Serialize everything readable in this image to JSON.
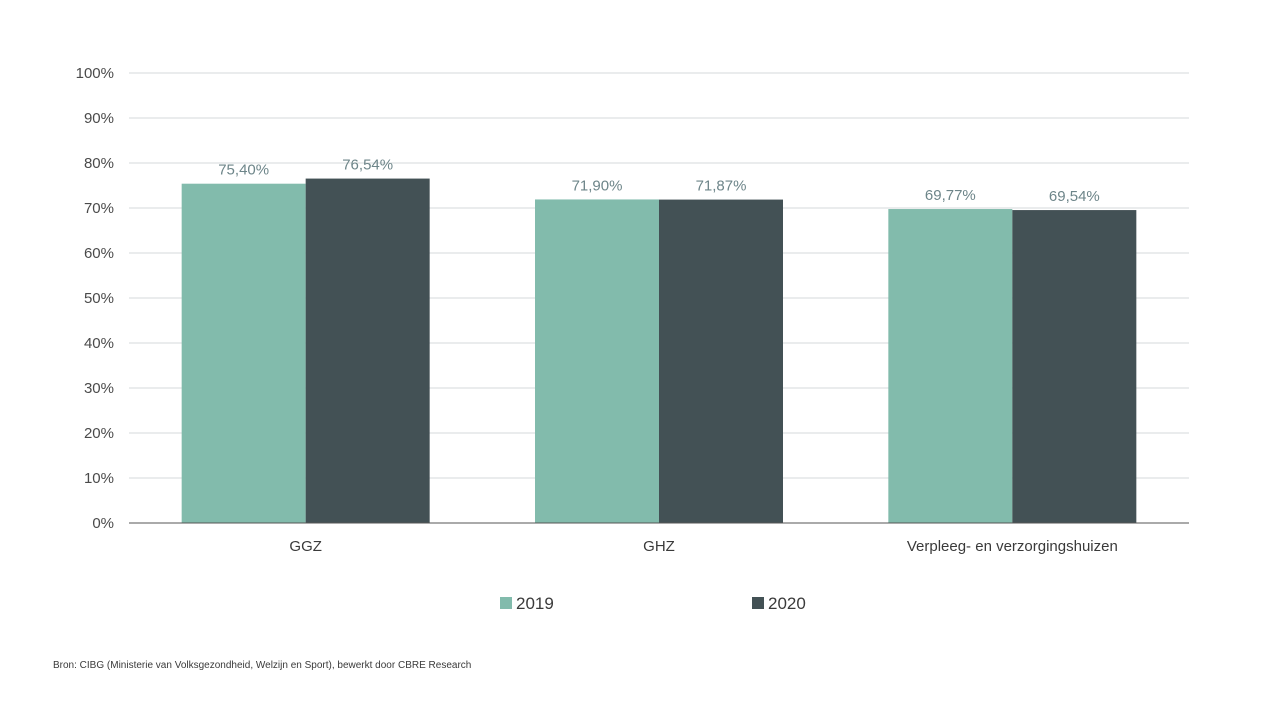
{
  "chart_data": {
    "type": "bar",
    "categories": [
      "GGZ",
      "GHZ",
      "Verpleeg- en verzorgingshuizen"
    ],
    "series": [
      {
        "name": "2019",
        "color": "#82bbac",
        "values": [
          75.4,
          71.9,
          69.77
        ],
        "labels": [
          "75,40%",
          "71,90%",
          "69,77%"
        ]
      },
      {
        "name": "2020",
        "color": "#435155",
        "values": [
          76.54,
          71.87,
          69.54
        ],
        "labels": [
          "76,54%",
          "71,87%",
          "69,54%"
        ]
      }
    ],
    "ylim": [
      0,
      100
    ],
    "yticks": [
      0,
      10,
      20,
      30,
      40,
      50,
      60,
      70,
      80,
      90,
      100
    ],
    "ytick_labels": [
      "0%",
      "10%",
      "20%",
      "30%",
      "40%",
      "50%",
      "60%",
      "70%",
      "80%",
      "90%",
      "100%"
    ],
    "title": "",
    "xlabel": "",
    "ylabel": "",
    "grid": true,
    "legend_position": "bottom-center"
  },
  "source": "Bron: CIBG (Ministerie van Volksgezondheid, Welzijn en Sport), bewerkt door CBRE Research",
  "colors": {
    "gridline": "#d6d9db",
    "axis": "#555555",
    "data_label": "#6d8589"
  }
}
